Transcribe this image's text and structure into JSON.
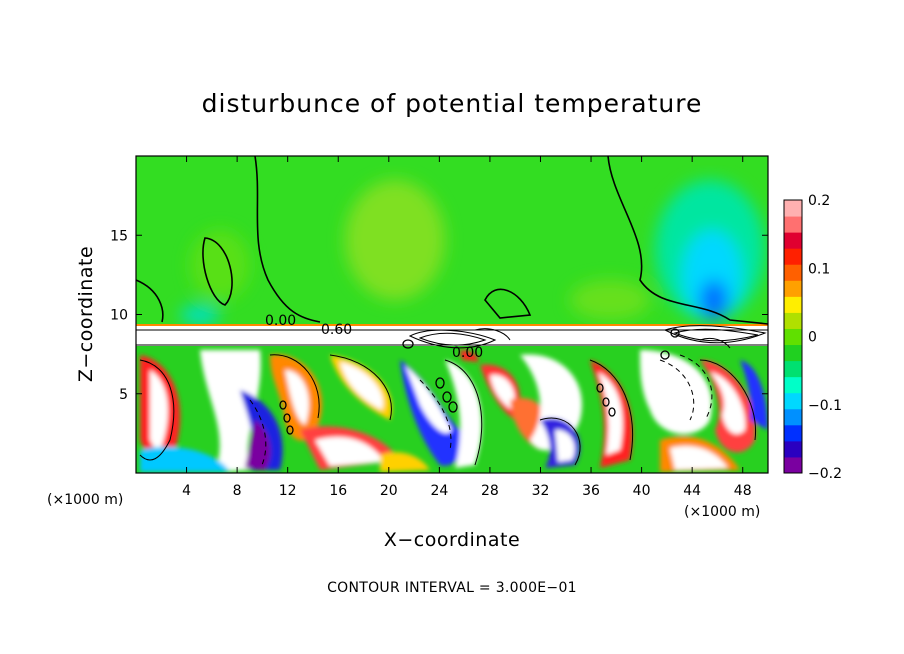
{
  "chart_data": {
    "type": "heatmap",
    "title": "disturbunce of potential temperature",
    "xlabel": "X−coordinate",
    "ylabel": "Z−coordinate",
    "x_unit": "(×1000 m)",
    "x_unit_right": "(×1000 m)",
    "xlim": [
      0,
      50
    ],
    "ylim": [
      0,
      20
    ],
    "x_ticks": [
      4,
      8,
      12,
      16,
      20,
      24,
      28,
      32,
      36,
      40,
      44,
      48
    ],
    "x_tick_labels": [
      "4",
      "8",
      "12",
      "16",
      "20",
      "24",
      "28",
      "32",
      "36",
      "40",
      "44",
      "48"
    ],
    "y_ticks": [
      5,
      10,
      15
    ],
    "y_tick_labels": [
      "5",
      "10",
      "15"
    ],
    "colorbar": {
      "range": [
        -0.2,
        0.2
      ],
      "ticks": [
        0.2,
        0.1,
        0,
        -0.1,
        -0.2
      ],
      "tick_labels": [
        "0.2",
        "0.1",
        "0",
        "−0.1",
        "−0.2"
      ],
      "colors": [
        "#7a00a0",
        "#2a00c0",
        "#0030ff",
        "#0090ff",
        "#00d8ff",
        "#00ffc8",
        "#00e070",
        "#20d020",
        "#60e000",
        "#b0e000",
        "#ffee00",
        "#ffa000",
        "#ff6000",
        "#ff2000",
        "#e00030",
        "#ff7070",
        "#ffb0b0"
      ]
    },
    "contour_labels": [
      "0.00",
      "0.60",
      "0.00"
    ],
    "contour_interval_text": "CONTOUR INTERVAL = 3.000E−01",
    "background_value": 0.0,
    "regions": [
      {
        "name": "upper quiescent layer",
        "z_range": [
          10,
          20
        ],
        "approx_value": 0.0
      },
      {
        "name": "warm band upper",
        "center": [
          20,
          14
        ],
        "approx_value": 0.03
      },
      {
        "name": "cool anomaly upper right",
        "center": [
          46,
          13
        ],
        "approx_value": -0.12
      },
      {
        "name": "thin interface layer",
        "z_range": [
          8,
          9.5
        ],
        "approx_value": 0.6
      },
      {
        "name": "turbulent lower layer",
        "z_range": [
          0,
          8
        ],
        "approx_value_range": [
          -0.2,
          0.2
        ]
      }
    ]
  }
}
